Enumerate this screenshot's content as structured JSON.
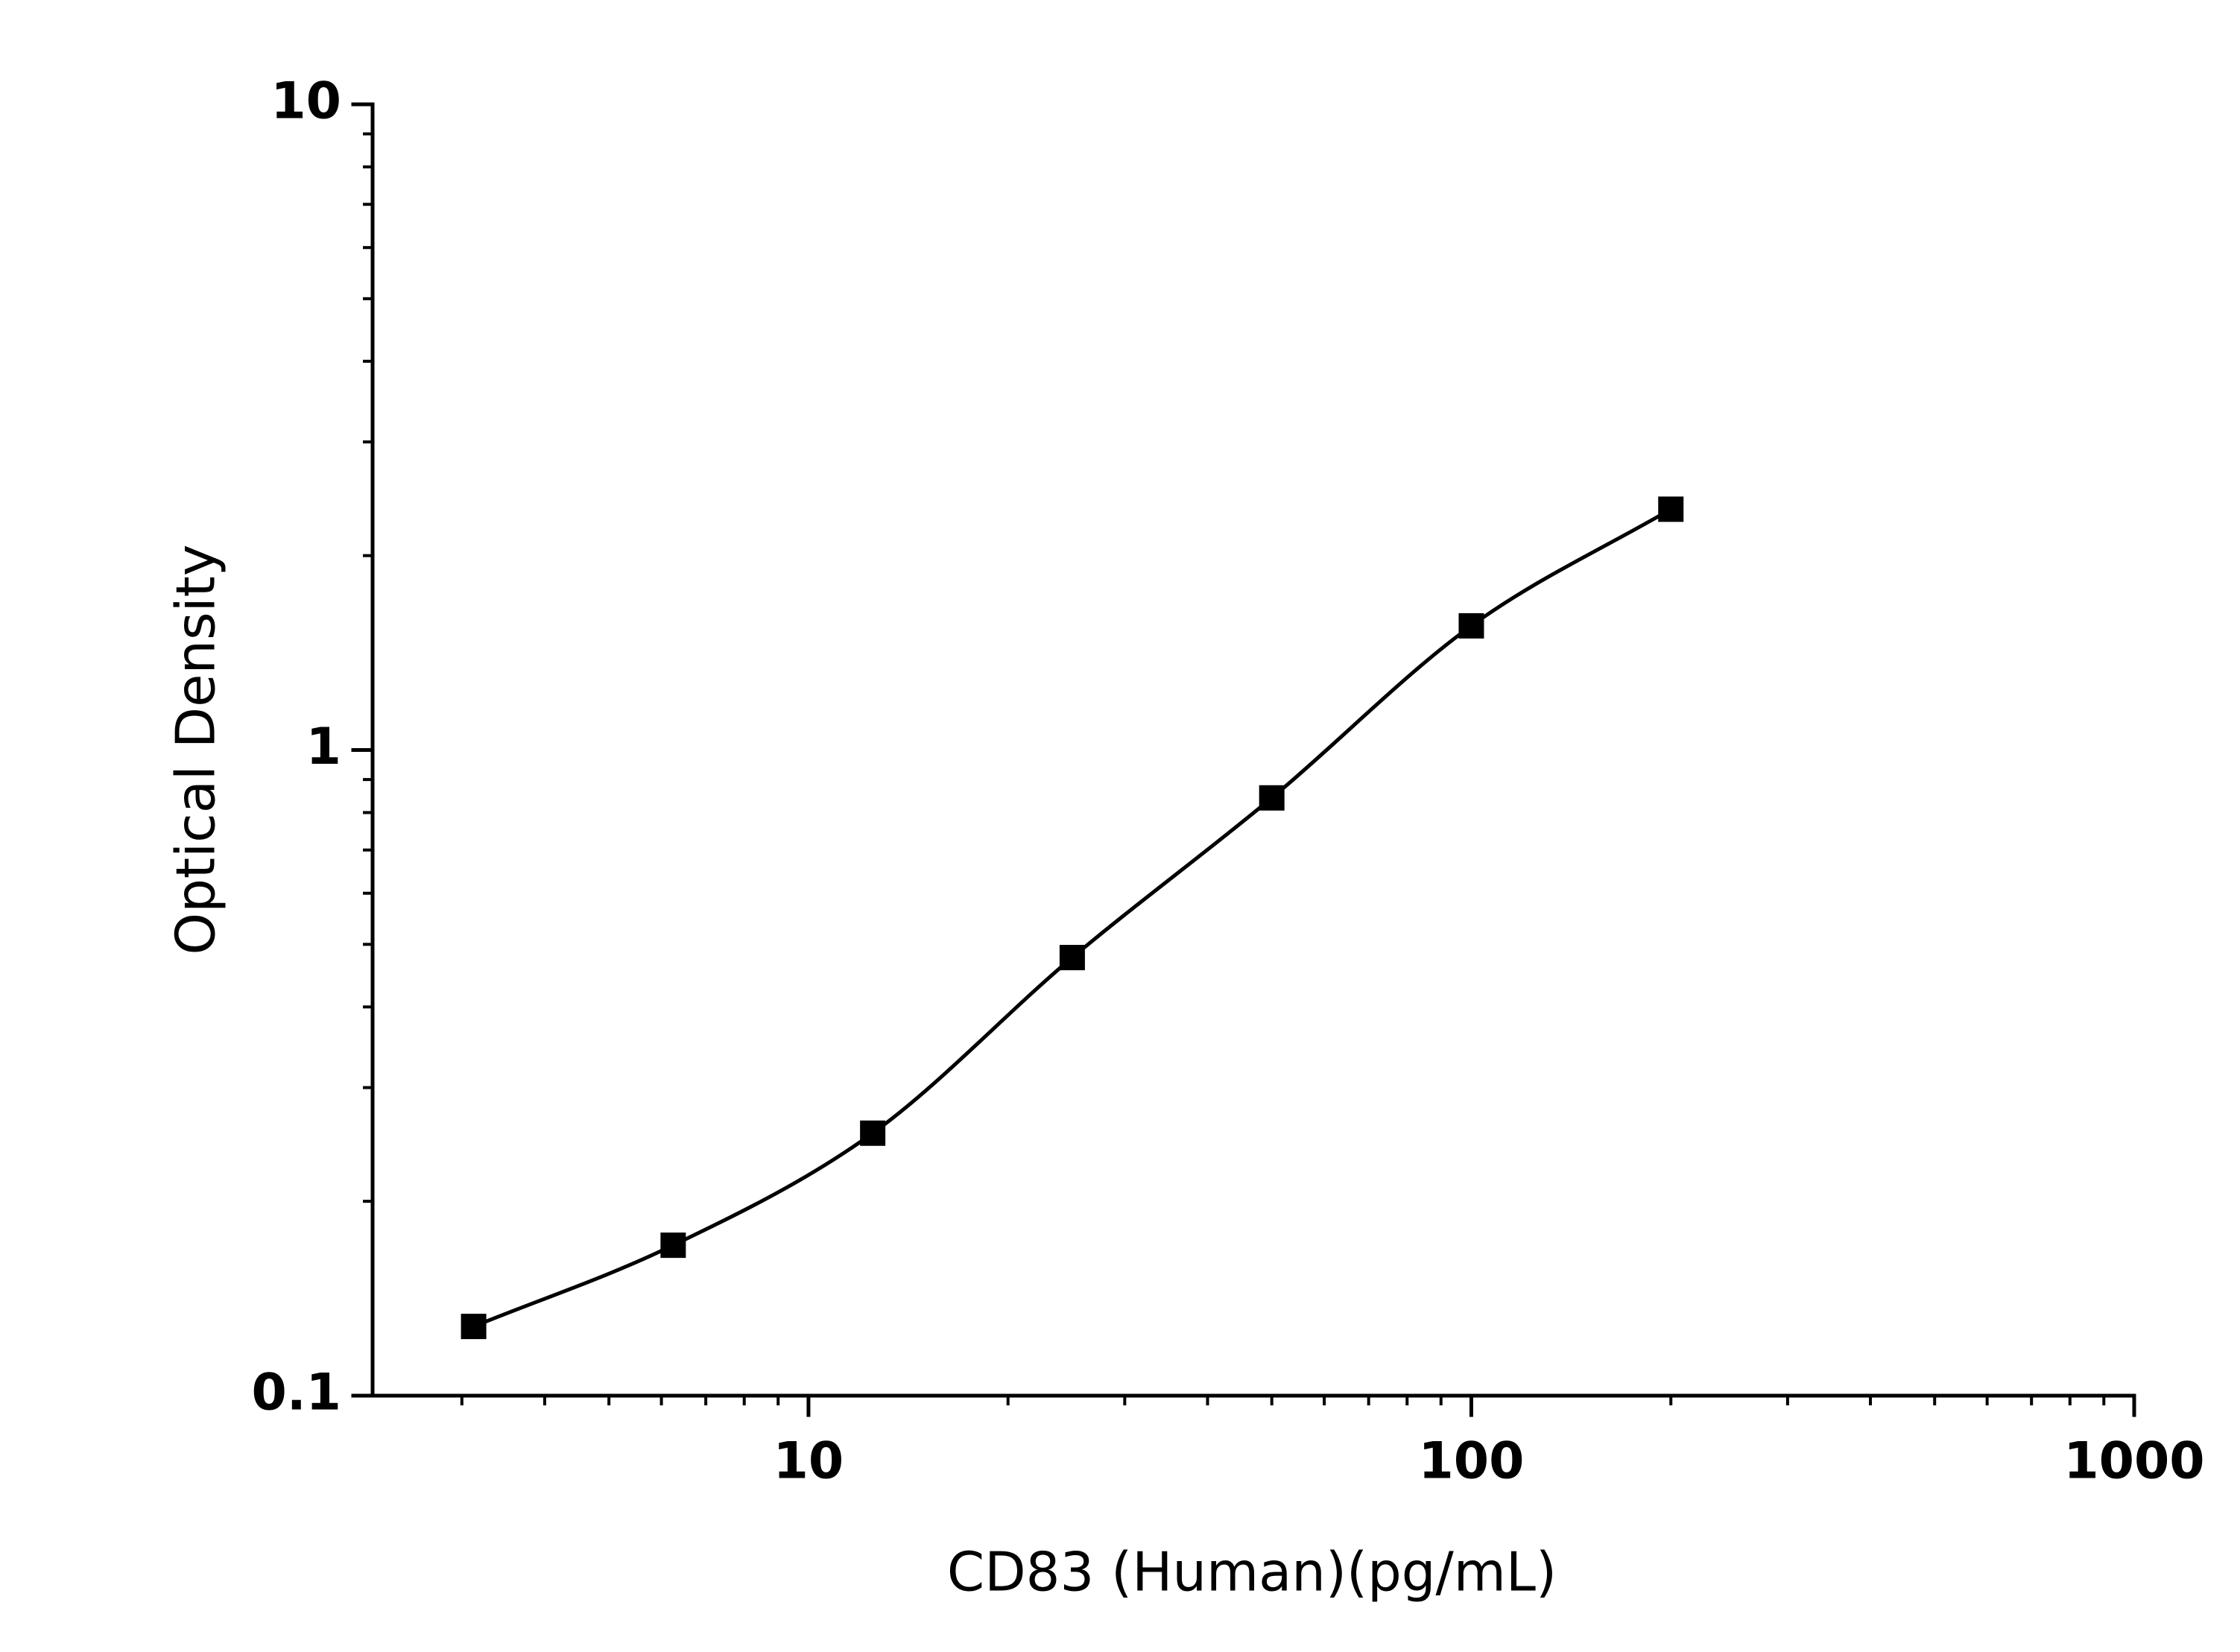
{
  "chart_data": {
    "type": "scatter",
    "x_label": "CD83 (Human)(pg/mL)",
    "y_label": "Optical Density",
    "x": [
      3.125,
      6.25,
      12.5,
      25,
      50,
      100,
      200
    ],
    "series": [
      {
        "color": "#000000",
        "values": [
          0.128,
          0.171,
          0.255,
          0.477,
          0.843,
          1.557,
          2.36
        ]
      }
    ],
    "xlim": [
      2.2,
      1000
    ],
    "ylim": [
      0.1,
      10
    ],
    "xticks": [
      10,
      100,
      1000
    ],
    "yticks": [
      0.1,
      1,
      10
    ],
    "x_log": true,
    "y_log": true,
    "minor_ticks": true,
    "fit_curve": true
  }
}
